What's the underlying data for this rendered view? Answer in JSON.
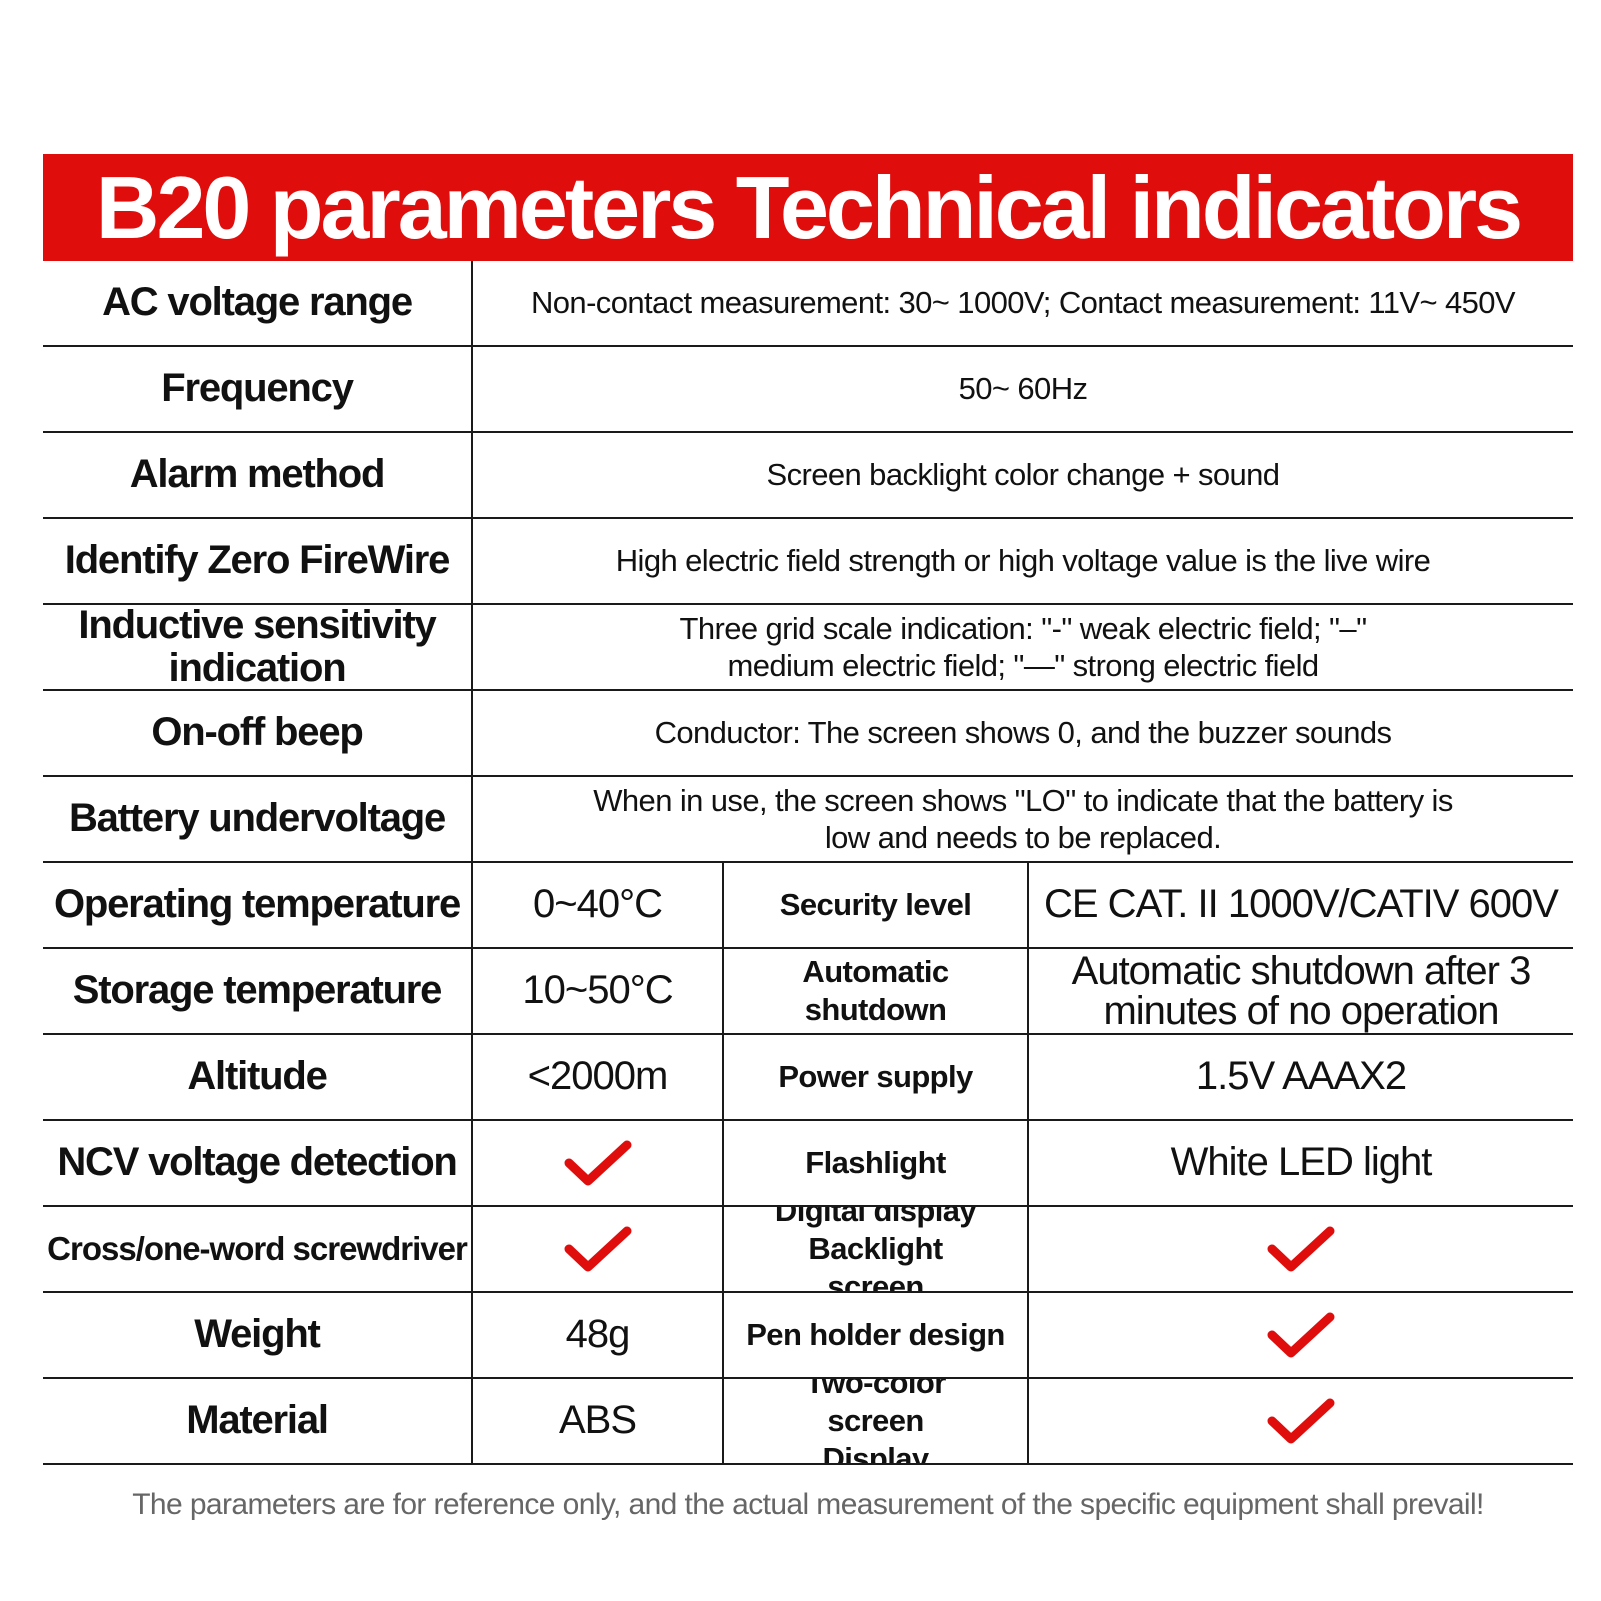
{
  "title": "B20 parameters Technical indicators",
  "colors": {
    "banner": "#e00d0d",
    "check": "#e00d0d",
    "footer": "#666666"
  },
  "rows": [
    {
      "label": "AC voltage range",
      "value": "Non-contact measurement: 30~ 1000V; Contact measurement: 11V~ 450V"
    },
    {
      "label": "Frequency",
      "value": "50~ 60Hz"
    },
    {
      "label": "Alarm method",
      "value": "Screen backlight color change + sound"
    },
    {
      "label": "Identify Zero FireWire",
      "value": "High electric field strength or high voltage value is the live wire"
    },
    {
      "label": "Inductive sensitivity indication",
      "value": "Three grid scale indication: \"-\" weak electric field; \"–\" medium electric field; \"—\" strong electric field"
    },
    {
      "label": "On-off beep",
      "value": "Conductor: The screen shows 0, and the buzzer sounds"
    },
    {
      "label": "Battery undervoltage",
      "value": "When in use, the screen shows \"LO\" to indicate that the battery is low and needs to be replaced."
    }
  ],
  "grid_rows": [
    {
      "label": "Operating temperature",
      "value": "0~40°C",
      "label2": "Security level",
      "value2": "CE CAT. II 1000V/CATIV 600V"
    },
    {
      "label": "Storage temperature",
      "value": "10~50°C",
      "label2": "Automatic shutdown",
      "value2": "Automatic shutdown after 3 minutes of no operation"
    },
    {
      "label": "Altitude",
      "value": "<2000m",
      "label2": "Power supply",
      "value2": "1.5V AAAX2"
    },
    {
      "label": "NCV voltage detection",
      "value": "check",
      "label2": "Flashlight",
      "value2": "White LED light"
    },
    {
      "label": "Cross/one-word screwdriver",
      "value": "check",
      "label2": "Digital display Backlight screen",
      "value2": "check"
    },
    {
      "label": "Weight",
      "value": "48g",
      "label2": "Pen holder design",
      "value2": "check"
    },
    {
      "label": "Material",
      "value": "ABS",
      "label2": "Two-color screen Display",
      "value2": "check"
    }
  ],
  "footer": "The parameters are for reference only, and the actual measurement of the specific equipment shall prevail!"
}
